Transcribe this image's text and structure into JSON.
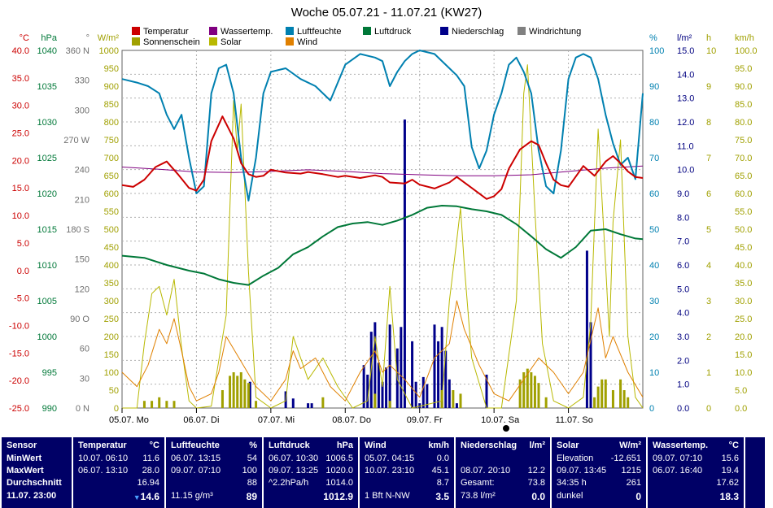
{
  "title": "Woche 05.07.21 - 11.07.21 (KW27)",
  "colors": {
    "temperature": "#cc0000",
    "water": "#800080",
    "humidity": "#0080b0",
    "pressure": "#007838",
    "rain": "#00008a",
    "wind_dir": "#808080",
    "sunshine": "#a0a000",
    "solar": "#b8b800",
    "wind": "#e08000",
    "panel_bg": "#000066"
  },
  "legend": [
    {
      "label": "Temperatur",
      "color": "#cc0000"
    },
    {
      "label": "Wassertemp.",
      "color": "#800080"
    },
    {
      "label": "Luftfeuchte",
      "color": "#0080b0"
    },
    {
      "label": "Luftdruck",
      "color": "#007838"
    },
    {
      "label": "Niederschlag",
      "color": "#00008a"
    },
    {
      "label": "Windrichtung",
      "color": "#808080"
    },
    {
      "label": "Sonnenschein",
      "color": "#a0a000"
    },
    {
      "label": "Solar",
      "color": "#b8b800"
    },
    {
      "label": "Wind",
      "color": "#e08000"
    }
  ],
  "axes_left": [
    {
      "unit": "°C",
      "color": "#cc0000",
      "ticks": [
        "40.0",
        "35.0",
        "30.0",
        "25.0",
        "20.0",
        "15.0",
        "10.0",
        "5.0",
        "0.0",
        "-5.0",
        "-10.0",
        "-15.0",
        "-20.0",
        "-25.0"
      ]
    },
    {
      "unit": "hPa",
      "color": "#007838",
      "ticks": [
        "1040",
        "1035",
        "1030",
        "1025",
        "1020",
        "1015",
        "1010",
        "1005",
        "1000",
        "995",
        "990"
      ]
    },
    {
      "unit": "°",
      "color": "#707070",
      "ticks": [
        "360 N",
        "330",
        "300",
        "270 W",
        "240",
        "210",
        "180 S",
        "150",
        "120",
        "90 O",
        "60",
        "30",
        "0 N"
      ]
    },
    {
      "unit": "W/m²",
      "color": "#a0a000",
      "ticks": [
        "1000",
        "950",
        "900",
        "850",
        "800",
        "750",
        "700",
        "650",
        "600",
        "550",
        "500",
        "450",
        "400",
        "350",
        "300",
        "250",
        "200",
        "150",
        "100",
        "50",
        "0"
      ]
    }
  ],
  "axes_right": [
    {
      "unit": "%",
      "color": "#0080b0",
      "ticks": [
        "100",
        "90",
        "80",
        "70",
        "60",
        "50",
        "40",
        "30",
        "20",
        "10",
        "0"
      ]
    },
    {
      "unit": "l/m²",
      "color": "#000080",
      "ticks": [
        "15.0",
        "14.0",
        "13.0",
        "12.0",
        "11.0",
        "10.0",
        "9.0",
        "8.0",
        "7.0",
        "6.0",
        "5.0",
        "4.0",
        "3.0",
        "2.0",
        "1.0",
        "0.0"
      ]
    },
    {
      "unit": "h",
      "color": "#a0a000",
      "ticks": [
        "10",
        "9",
        "8",
        "7",
        "6",
        "5",
        "4",
        "3",
        "2",
        "1",
        "0"
      ]
    },
    {
      "unit": "km/h",
      "color": "#a0a000",
      "ticks": [
        "100.0",
        "95.0",
        "90.0",
        "85.0",
        "80.0",
        "75.0",
        "70.0",
        "65.0",
        "60.0",
        "55.0",
        "50.0",
        "45.0",
        "40.0",
        "35.0",
        "30.0",
        "25.0",
        "20.0",
        "15.0",
        "10.0",
        "5.0",
        "0.0"
      ]
    }
  ],
  "x_labels": [
    "05.07. Mo",
    "06.07. Di",
    "07.07. Mi",
    "08.07. Do",
    "09.07. Fr",
    "10.07. Sa",
    "11.07. So"
  ],
  "chart_data": {
    "type": "line",
    "x_unit": "days since 05.07.21 00:00",
    "xlim": [
      0,
      7
    ],
    "series": [
      {
        "name": "Temperatur",
        "unit": "°C",
        "ylim": [
          -25,
          40
        ],
        "x": [
          0,
          0.15,
          0.3,
          0.45,
          0.6,
          0.75,
          0.9,
          1.0,
          1.1,
          1.2,
          1.35,
          1.5,
          1.6,
          1.7,
          1.8,
          1.9,
          2.0,
          2.2,
          2.4,
          2.5,
          2.7,
          2.9,
          3.0,
          3.2,
          3.4,
          3.5,
          3.6,
          3.8,
          3.9,
          4.0,
          4.2,
          4.4,
          4.5,
          4.7,
          4.9,
          5.0,
          5.1,
          5.2,
          5.35,
          5.5,
          5.6,
          5.7,
          5.8,
          5.9,
          6.0,
          6.2,
          6.35,
          6.5,
          6.6,
          6.7,
          6.8,
          6.9,
          7.0
        ],
        "y": [
          15.5,
          15.2,
          16.5,
          18.8,
          19.8,
          17.5,
          15.0,
          14.5,
          16.5,
          23.5,
          28.0,
          24.0,
          19.5,
          17.5,
          17.0,
          17.2,
          18.3,
          17.8,
          17.6,
          17.9,
          17.5,
          17.0,
          17.2,
          16.8,
          17.3,
          17.0,
          16.0,
          15.8,
          16.5,
          15.6,
          14.9,
          16.0,
          17.0,
          15.0,
          13.0,
          13.5,
          14.8,
          18.5,
          22.0,
          23.5,
          22.8,
          19.5,
          16.5,
          15.5,
          15.2,
          19.0,
          17.2,
          19.8,
          20.8,
          19.5,
          18.0,
          17.0,
          16.8
        ]
      },
      {
        "name": "Wassertemp.",
        "unit": "°C",
        "ylim": [
          -25,
          40
        ],
        "x": [
          0,
          0.5,
          1.0,
          1.5,
          2.0,
          2.5,
          3.0,
          3.5,
          4.0,
          4.5,
          5.0,
          5.5,
          6.0,
          6.5,
          7.0
        ],
        "y": [
          18.8,
          18.4,
          17.9,
          17.8,
          18.0,
          18.3,
          18.0,
          17.6,
          17.4,
          17.2,
          17.2,
          17.4,
          18.0,
          18.6,
          19.0
        ]
      },
      {
        "name": "Luftfeuchte",
        "unit": "%",
        "ylim": [
          0,
          100
        ],
        "x": [
          0,
          0.2,
          0.35,
          0.5,
          0.6,
          0.7,
          0.8,
          0.9,
          1.0,
          1.1,
          1.2,
          1.3,
          1.4,
          1.5,
          1.6,
          1.7,
          1.8,
          1.9,
          2.0,
          2.2,
          2.4,
          2.6,
          2.8,
          3.0,
          3.2,
          3.4,
          3.5,
          3.6,
          3.7,
          3.8,
          3.9,
          4.0,
          4.2,
          4.4,
          4.5,
          4.6,
          4.7,
          4.8,
          4.9,
          5.0,
          5.1,
          5.2,
          5.3,
          5.4,
          5.5,
          5.6,
          5.7,
          5.8,
          5.9,
          6.0,
          6.1,
          6.2,
          6.3,
          6.4,
          6.5,
          6.6,
          6.7,
          6.8,
          6.9,
          7.0
        ],
        "y": [
          92,
          91,
          90,
          88,
          82,
          78,
          82,
          70,
          60,
          62,
          88,
          95,
          96,
          88,
          70,
          58,
          70,
          88,
          94,
          95,
          92,
          90,
          86,
          96,
          99,
          98,
          97,
          90,
          94,
          97,
          99,
          100,
          99,
          95,
          93,
          90,
          73,
          67,
          72,
          82,
          88,
          96,
          98,
          94,
          88,
          72,
          62,
          60,
          72,
          92,
          98,
          99,
          98,
          92,
          82,
          74,
          68,
          70,
          64,
          88
        ]
      },
      {
        "name": "Luftdruck",
        "unit": "hPa",
        "ylim": [
          990,
          1040
        ],
        "x": [
          0,
          0.3,
          0.6,
          0.9,
          1.1,
          1.3,
          1.5,
          1.7,
          1.9,
          2.1,
          2.3,
          2.5,
          2.7,
          2.9,
          3.1,
          3.3,
          3.5,
          3.7,
          3.9,
          4.1,
          4.3,
          4.5,
          4.7,
          4.9,
          5.1,
          5.3,
          5.5,
          5.7,
          5.9,
          6.1,
          6.3,
          6.5,
          6.7,
          6.9,
          7.0
        ],
        "y": [
          1011.3,
          1011.0,
          1010.0,
          1009.2,
          1008.8,
          1008.0,
          1007.5,
          1007.2,
          1008.5,
          1009.6,
          1011.5,
          1012.5,
          1014.0,
          1015.3,
          1015.8,
          1016.0,
          1015.6,
          1016.2,
          1017.0,
          1018.0,
          1018.3,
          1018.2,
          1017.8,
          1017.5,
          1017.0,
          1015.7,
          1014.0,
          1012.2,
          1011.0,
          1012.5,
          1014.8,
          1015.0,
          1014.3,
          1013.7,
          1013.6
        ]
      },
      {
        "name": "Solar",
        "unit": "W/m²",
        "ylim": [
          0,
          1000
        ],
        "x": [
          0,
          0.2,
          0.3,
          0.4,
          0.5,
          0.6,
          0.7,
          0.8,
          0.9,
          1.0,
          1.2,
          1.4,
          1.5,
          1.55,
          1.6,
          1.7,
          1.8,
          2.0,
          2.2,
          2.3,
          2.5,
          2.7,
          2.9,
          3.1,
          3.3,
          3.4,
          3.5,
          3.6,
          3.7,
          3.9,
          4.1,
          4.3,
          4.4,
          4.5,
          4.55,
          4.6,
          4.7,
          4.9,
          5.1,
          5.3,
          5.4,
          5.45,
          5.55,
          5.65,
          5.8,
          6.0,
          6.2,
          6.3,
          6.4,
          6.5,
          6.55,
          6.6,
          6.7,
          6.8,
          6.9,
          7.0
        ],
        "y": [
          0,
          0,
          180,
          320,
          340,
          260,
          360,
          170,
          20,
          0,
          5,
          260,
          860,
          720,
          850,
          380,
          30,
          0,
          20,
          200,
          80,
          140,
          60,
          0,
          20,
          200,
          60,
          340,
          80,
          0,
          10,
          20,
          300,
          470,
          560,
          400,
          140,
          0,
          0,
          300,
          880,
          960,
          550,
          180,
          20,
          0,
          30,
          240,
          780,
          400,
          200,
          520,
          750,
          200,
          30,
          0
        ]
      },
      {
        "name": "Wind",
        "unit": "km/h",
        "ylim": [
          0,
          100
        ],
        "x": [
          0,
          0.2,
          0.35,
          0.5,
          0.6,
          0.7,
          0.8,
          0.9,
          1.0,
          1.2,
          1.3,
          1.4,
          1.6,
          1.8,
          2.0,
          2.2,
          2.3,
          2.4,
          2.6,
          2.8,
          3.0,
          3.2,
          3.4,
          3.5,
          3.6,
          3.8,
          4.0,
          4.2,
          4.4,
          4.5,
          4.6,
          4.8,
          5.0,
          5.2,
          5.4,
          5.6,
          5.8,
          6.0,
          6.2,
          6.4,
          6.5,
          6.6,
          6.8,
          7.0
        ],
        "y": [
          10,
          6,
          12,
          22,
          18,
          25,
          16,
          6,
          2,
          4,
          10,
          20,
          13,
          6,
          2,
          8,
          16,
          11,
          14,
          6,
          2,
          10,
          16,
          10,
          12,
          8,
          3,
          14,
          18,
          30,
          22,
          12,
          4,
          2,
          8,
          14,
          10,
          4,
          10,
          28,
          14,
          20,
          10,
          3
        ]
      }
    ],
    "bar_series": [
      {
        "name": "Niederschlag",
        "unit": "l/m²",
        "ylim": [
          0,
          15
        ],
        "x": [
          1.72,
          2.2,
          2.3,
          2.5,
          2.55,
          3.25,
          3.3,
          3.35,
          3.4,
          3.45,
          3.5,
          3.55,
          3.6,
          3.7,
          3.75,
          3.8,
          3.9,
          3.95,
          4.0,
          4.05,
          4.1,
          4.2,
          4.25,
          4.3,
          4.35,
          4.4,
          4.5,
          4.9,
          6.25,
          6.3
        ],
        "y": [
          1.1,
          0.7,
          0.4,
          0.2,
          0.2,
          1.8,
          1.4,
          3.2,
          3.6,
          1.9,
          1.1,
          1.7,
          3.5,
          2.5,
          3.4,
          12.1,
          2.8,
          1.1,
          0.2,
          1.3,
          1.0,
          3.5,
          2.8,
          3.4,
          2.4,
          1.2,
          0.2,
          1.4,
          6.6,
          3.6
        ]
      },
      {
        "name": "Sonnenschein",
        "unit": "h",
        "ylim": [
          0,
          10
        ],
        "x": [
          0.3,
          0.4,
          0.5,
          0.6,
          0.7,
          1.35,
          1.45,
          1.5,
          1.55,
          1.6,
          1.65,
          1.7,
          1.8,
          2.7,
          3.4,
          3.6,
          4.3,
          4.45,
          4.55,
          5.35,
          5.4,
          5.45,
          5.5,
          5.55,
          5.6,
          5.7,
          6.35,
          6.4,
          6.45,
          6.5,
          6.6,
          6.7,
          6.75,
          6.8
        ],
        "y": [
          0.2,
          0.2,
          0.3,
          0.2,
          0.2,
          0.5,
          0.9,
          1.0,
          0.9,
          1.0,
          0.8,
          0.7,
          0.2,
          0.3,
          0.4,
          0.2,
          0.5,
          0.5,
          0.4,
          0.8,
          1.0,
          1.1,
          1.0,
          0.9,
          0.7,
          0.3,
          0.3,
          0.6,
          0.8,
          0.8,
          0.5,
          0.8,
          0.5,
          0.3
        ]
      }
    ]
  },
  "table": {
    "sensor": {
      "header": "Sensor",
      "rows": [
        "MinWert",
        "MaxWert",
        "Durchschnitt",
        "11.07. 23:00"
      ]
    },
    "temperature": {
      "header": "Temperatur",
      "unit": "°C",
      "rows": [
        [
          "10.07. 06:10",
          "11.6"
        ],
        [
          "06.07. 13:10",
          "28.0"
        ],
        [
          "",
          "16.94"
        ],
        [
          "",
          "14.6"
        ]
      ]
    },
    "humidity": {
      "header": "Luftfeuchte",
      "unit": "%",
      "rows": [
        [
          "06.07. 13:15",
          "54"
        ],
        [
          "09.07. 07:10",
          "100"
        ],
        [
          "",
          "88"
        ],
        [
          "11.15 g/m³",
          "89"
        ]
      ]
    },
    "pressure": {
      "header": "Luftdruck",
      "unit": "hPa",
      "rows": [
        [
          "06.07. 10:30",
          "1006.5"
        ],
        [
          "09.07. 13:25",
          "1020.0"
        ],
        [
          "^2.2hPa/h",
          "1014.0"
        ],
        [
          "",
          "1012.9"
        ]
      ]
    },
    "wind": {
      "header": "Wind",
      "unit": "km/h",
      "rows": [
        [
          "05.07. 04:15",
          "0.0"
        ],
        [
          "10.07. 23:10",
          "45.1"
        ],
        [
          "",
          "8.7"
        ],
        [
          "1 Bft N-NW",
          "3.5"
        ]
      ]
    },
    "rain": {
      "header": "Niederschlag",
      "unit": "l/m²",
      "rows": [
        [
          "",
          ""
        ],
        [
          "08.07. 20:10",
          "12.2"
        ],
        [
          "Gesamt:",
          "73.8"
        ],
        [
          "73.8 l/m²",
          "0.0"
        ]
      ]
    },
    "solar": {
      "header": "Solar",
      "unit": "W/m²",
      "rows": [
        [
          "Elevation",
          "-12.651"
        ],
        [
          "09.07. 13:45",
          "1215"
        ],
        [
          "34:35 h",
          "261"
        ],
        [
          "dunkel",
          "0"
        ]
      ]
    },
    "water": {
      "header": "Wassertemp.",
      "unit": "°C",
      "rows": [
        [
          "09.07. 07:10",
          "15.6"
        ],
        [
          "06.07. 16:40",
          "19.4"
        ],
        [
          "",
          "17.62"
        ],
        [
          "",
          "18.3"
        ]
      ]
    }
  }
}
